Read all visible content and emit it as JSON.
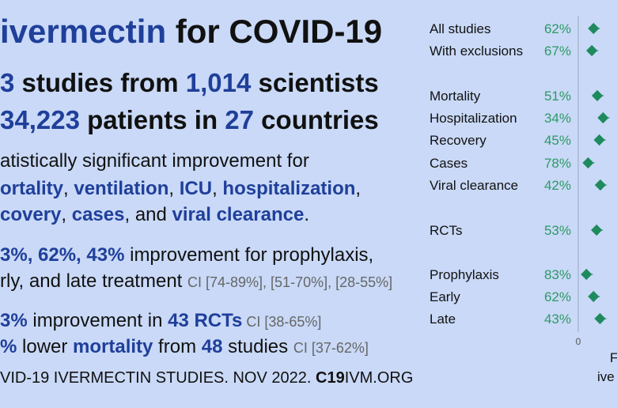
{
  "headline": {
    "title_prefix": "ivermectin",
    "title_suffix": " for COVID-19",
    "studies_count": "3",
    "studies_mid": " studies from ",
    "scientists_count": "1,014",
    "scientists_suffix": " scientists",
    "patients_count": "34,223",
    "patients_mid": " patients in ",
    "countries_count": "27",
    "countries_suffix": " countries"
  },
  "significance": {
    "line1": "atistically significant improvement for",
    "outcomes_line2": [
      {
        "text": "ortality",
        "bold": true
      },
      {
        "text": ", ",
        "bold": false
      },
      {
        "text": "ventilation",
        "bold": true
      },
      {
        "text": ", ",
        "bold": false
      },
      {
        "text": "ICU",
        "bold": true
      },
      {
        "text": ", ",
        "bold": false
      },
      {
        "text": "hospitalization",
        "bold": true
      },
      {
        "text": ",",
        "bold": false
      }
    ],
    "outcomes_line3": [
      {
        "text": "covery",
        "bold": true
      },
      {
        "text": ", ",
        "bold": false
      },
      {
        "text": "cases",
        "bold": true
      },
      {
        "text": ", and ",
        "bold": false
      },
      {
        "text": "viral clearance",
        "bold": true
      },
      {
        "text": ".",
        "bold": false
      }
    ]
  },
  "treatment": {
    "values": "3%, 62%, 43%",
    "line1_suffix": " improvement for prophylaxis,",
    "line2": "rly, and late treatment ",
    "ci": "CI [74-89%], [51-70%], [28-55%]"
  },
  "rct": {
    "value": "3%",
    "mid": " improvement in ",
    "label": "43 RCTs",
    "ci": " CI [38-65%]"
  },
  "mortality": {
    "value": "%",
    "mid": " lower ",
    "label": "mortality",
    "from": " from ",
    "count": "48",
    "suffix": " studies ",
    "ci": "CI [37-62%]"
  },
  "footer": {
    "text": "VID-19 IVERMECTIN STUDIES. NOV 2022. ",
    "site_bold": "C19",
    "site_rest": "IVM.ORG"
  },
  "chart_data": {
    "type": "scatter",
    "title": "",
    "xlabel": "F",
    "xlabel2": "ive",
    "zero_label": "0",
    "label_color": "#111111",
    "pct_color": "#2e9966",
    "marker_color": "#1e8a5e",
    "rows": [
      {
        "label": "All studies",
        "pct": "62%",
        "value": 62
      },
      {
        "label": "With exclusions",
        "pct": "67%",
        "value": 67
      },
      {
        "label": "Mortality",
        "pct": "51%",
        "value": 51
      },
      {
        "label": "Hospitalization",
        "pct": "34%",
        "value": 34
      },
      {
        "label": "Recovery",
        "pct": "45%",
        "value": 45
      },
      {
        "label": "Cases",
        "pct": "78%",
        "value": 78
      },
      {
        "label": "Viral clearance",
        "pct": "42%",
        "value": 42
      },
      {
        "label": "RCTs",
        "pct": "53%",
        "value": 53
      },
      {
        "label": "Prophylaxis",
        "pct": "83%",
        "value": 83
      },
      {
        "label": "Early",
        "pct": "62%",
        "value": 62
      },
      {
        "label": "Late",
        "pct": "43%",
        "value": 43
      }
    ]
  }
}
